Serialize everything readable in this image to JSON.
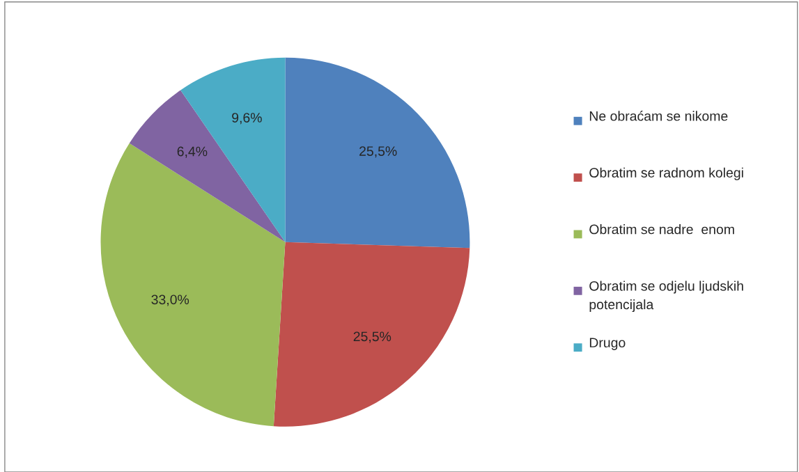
{
  "chart_data": {
    "type": "pie",
    "categories": [
      "Ne obraćam se nikome",
      "Obratim se radnom kolegi",
      "Obratim se nadre  enom",
      "Obratim se odjelu ljudskih potencijala",
      "Drugo"
    ],
    "values": [
      25.5,
      25.5,
      33.0,
      6.4,
      9.6
    ],
    "colors": [
      "#4f81bd",
      "#c0504d",
      "#9bbb59",
      "#8064a2",
      "#4bacc6"
    ],
    "value_labels": [
      "25,5%",
      "25,5%",
      "33,0%",
      "6,4%",
      "9,6%"
    ],
    "legend": "right"
  }
}
